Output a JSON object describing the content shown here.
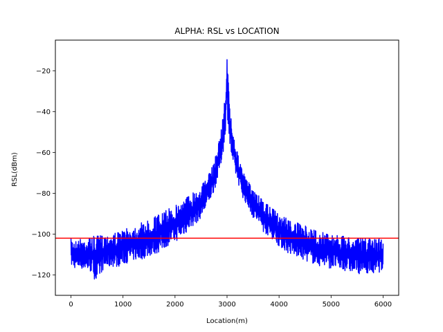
{
  "chart_data": {
    "type": "line",
    "title": "ALPHA: RSL vs LOCATION",
    "xlabel": "Location(m)",
    "ylabel": "RSL(dBm)",
    "xlim": [
      -300,
      6300
    ],
    "ylim": [
      -130,
      -5
    ],
    "xticks": [
      0,
      1000,
      2000,
      3000,
      4000,
      5000,
      6000
    ],
    "xtick_labels": [
      "0",
      "1000",
      "2000",
      "3000",
      "4000",
      "5000",
      "6000"
    ],
    "yticks": [
      -120,
      -100,
      -80,
      -60,
      -40,
      -20
    ],
    "ytick_labels": [
      "−120",
      "−100",
      "−80",
      "−60",
      "−40",
      "−20"
    ],
    "grid": false,
    "legend": "none",
    "series": [
      {
        "color": "#0000ff",
        "x": [
          0,
          100,
          200,
          300,
          400,
          500,
          600,
          700,
          800,
          900,
          1000,
          1100,
          1200,
          1300,
          1400,
          1500,
          1600,
          1700,
          1800,
          1900,
          2000,
          2100,
          2200,
          2300,
          2400,
          2500,
          2600,
          2700,
          2750,
          2800,
          2850,
          2900,
          2950,
          2975,
          3000,
          3025,
          3050,
          3100,
          3150,
          3200,
          3250,
          3300,
          3400,
          3500,
          3600,
          3700,
          3800,
          3900,
          4000,
          4100,
          4200,
          4300,
          4400,
          4500,
          4600,
          4700,
          4800,
          4900,
          5000,
          5100,
          5200,
          5300,
          5400,
          5500,
          5600,
          5700,
          5800,
          5900,
          6000
        ],
        "upper": [
          -102,
          -103,
          -102,
          -102,
          -101,
          -101,
          -100,
          -100,
          -99,
          -99,
          -98,
          -97,
          -96,
          -95,
          -94,
          -93,
          -91,
          -90,
          -89,
          -87,
          -86,
          -84,
          -82,
          -80,
          -78,
          -76,
          -73,
          -68,
          -64,
          -59,
          -53,
          -46,
          -35,
          -25,
          -11,
          -25,
          -36,
          -47,
          -54,
          -60,
          -65,
          -69,
          -74,
          -78,
          -81,
          -84,
          -86,
          -88,
          -90,
          -91,
          -93,
          -94,
          -95,
          -96,
          -97,
          -98,
          -99,
          -99,
          -100,
          -100,
          -101,
          -101,
          -101,
          -102,
          -102,
          -102,
          -102,
          -102,
          -101
        ],
        "lower": [
          -116,
          -117,
          -117,
          -118,
          -119,
          -125,
          -118,
          -117,
          -116,
          -116,
          -115,
          -114,
          -113,
          -113,
          -112,
          -111,
          -110,
          -109,
          -107,
          -105,
          -104,
          -102,
          -100,
          -97,
          -95,
          -92,
          -88,
          -82,
          -79,
          -75,
          -70,
          -64,
          -56,
          -48,
          -40,
          -48,
          -57,
          -65,
          -70,
          -74,
          -78,
          -82,
          -87,
          -92,
          -95,
          -99,
          -101,
          -103,
          -106,
          -108,
          -110,
          -111,
          -112,
          -113,
          -114,
          -115,
          -116,
          -116,
          -117,
          -117,
          -118,
          -118,
          -119,
          -119,
          -120,
          -119,
          -120,
          -119,
          -118
        ]
      }
    ],
    "reference_line": {
      "y": -102,
      "color": "#ff0000"
    }
  }
}
